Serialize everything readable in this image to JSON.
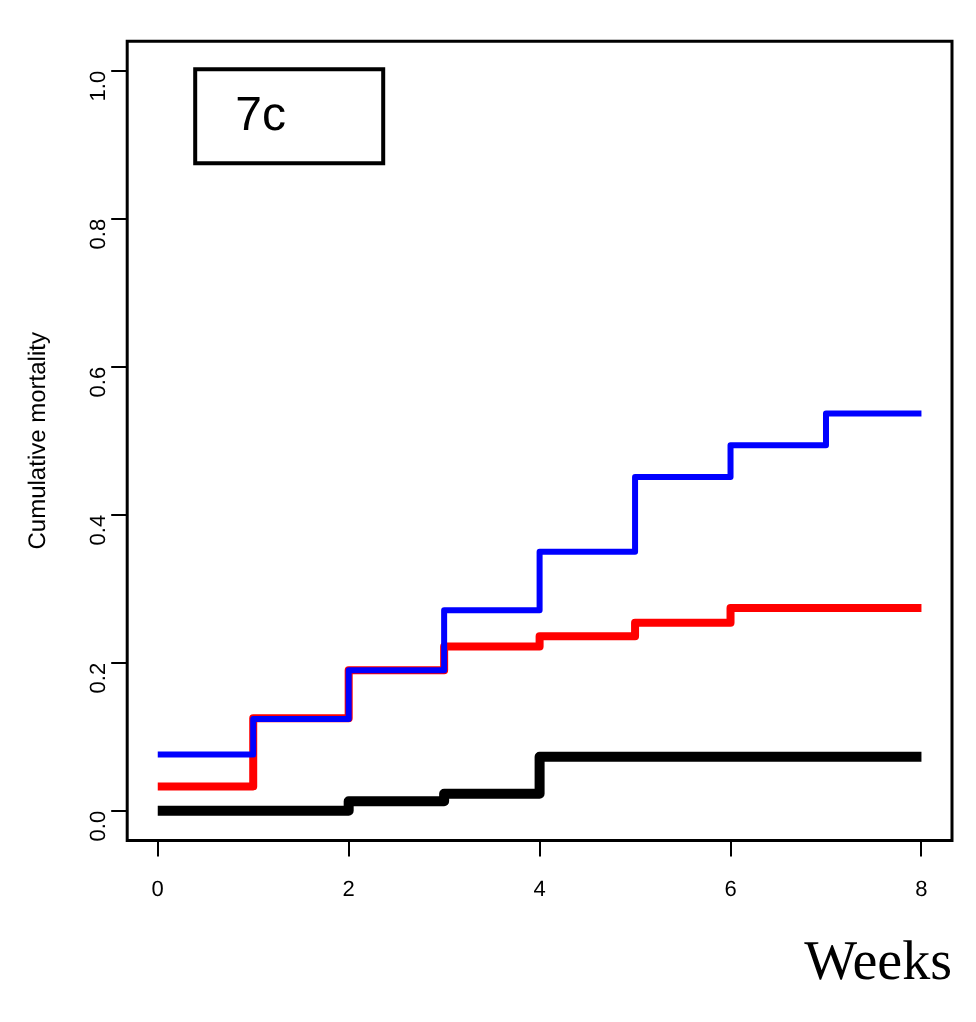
{
  "chart_data": {
    "type": "step",
    "xlabel": "Weeks",
    "ylabel": "Cumulative mortality",
    "annotations": [
      "7c"
    ],
    "x": [
      0,
      1,
      2,
      3,
      4,
      5,
      6,
      7,
      8
    ],
    "series": [
      {
        "color": "#0000ff",
        "values": [
          0.076,
          0.124,
          0.19,
          0.271,
          0.35,
          0.451,
          0.494,
          0.537,
          0.537
        ]
      },
      {
        "color": "#ff0000",
        "values": [
          0.033,
          0.125,
          0.19,
          0.222,
          0.236,
          0.254,
          0.274,
          0.274,
          0.274
        ]
      },
      {
        "color": "#000000",
        "values": [
          0,
          0,
          0.013,
          0.023,
          0.073,
          0.073,
          0.073,
          0.073,
          0.073
        ]
      }
    ],
    "xlim": [
      -0.32,
      8.32
    ],
    "ylim": [
      -0.04,
      1.04
    ],
    "xticks": [
      0,
      2,
      4,
      6,
      8
    ],
    "yticks": [
      {
        "value": 0,
        "label": "0.0"
      },
      {
        "value": 0.2,
        "label": "0.2"
      },
      {
        "value": 0.4,
        "label": "0.4"
      },
      {
        "value": 0.6,
        "label": "0.6"
      },
      {
        "value": 0.8,
        "label": "0.8"
      },
      {
        "value": 1,
        "label": "1.0"
      }
    ],
    "grid": false,
    "legend": false
  }
}
